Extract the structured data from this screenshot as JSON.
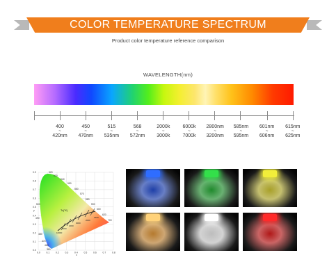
{
  "header": {
    "title": "COLOR TEMPERATURE SPECTRUM",
    "subtitle": "Product color temperature reference comparison"
  },
  "spectrum": {
    "label": "WAVELENGTH(nm)",
    "ticks": [
      {
        "top": "400",
        "bottom": "420nm"
      },
      {
        "top": "450",
        "bottom": "470nm"
      },
      {
        "top": "515",
        "bottom": "535nm"
      },
      {
        "top": "568",
        "bottom": "572nm"
      },
      {
        "top": "2000k",
        "bottom": "3000k"
      },
      {
        "top": "6000k",
        "bottom": "7000k"
      },
      {
        "top": "2800nm",
        "bottom": "3200nm"
      },
      {
        "top": "585nm",
        "bottom": "595nm"
      },
      {
        "top": "601nm",
        "bottom": "606nm"
      },
      {
        "top": "615nm",
        "bottom": "625nm"
      }
    ],
    "separator": "~"
  },
  "cie_diagram": {
    "x_ticks": [
      "0.0",
      "0.1",
      "0.2",
      "0.3",
      "0.4",
      "0.5",
      "0.6",
      "0.7",
      "0.8"
    ],
    "y_ticks": [
      "0.0",
      "0.1",
      "0.2",
      "0.3",
      "0.4",
      "0.5",
      "0.6",
      "0.7",
      "0.8",
      "0.9"
    ],
    "xlabel": "x",
    "ylabel": "y",
    "wavelength_labels": [
      "520",
      "530",
      "540",
      "550",
      "560",
      "570",
      "580",
      "590",
      "600",
      "620",
      "700",
      "500",
      "490",
      "480",
      "470",
      "460",
      "380"
    ],
    "locus_label": "Tc(°K)",
    "cct_labels": [
      "10000",
      "6000",
      "4000",
      "3000",
      "2000",
      "1500"
    ]
  },
  "photos": [
    {
      "name": "blue",
      "light": "#2f6dff",
      "glow": "#1e3fa8"
    },
    {
      "name": "green",
      "light": "#33e04a",
      "glow": "#1f8a2c"
    },
    {
      "name": "yellow",
      "light": "#f2ee3a",
      "glow": "#a8a028"
    },
    {
      "name": "warm-white",
      "light": "#ffd27a",
      "glow": "#b57a2e"
    },
    {
      "name": "cool-white",
      "light": "#ffffff",
      "glow": "#bdbdbd"
    },
    {
      "name": "red",
      "light": "#ff2a2a",
      "glow": "#b01818"
    }
  ]
}
